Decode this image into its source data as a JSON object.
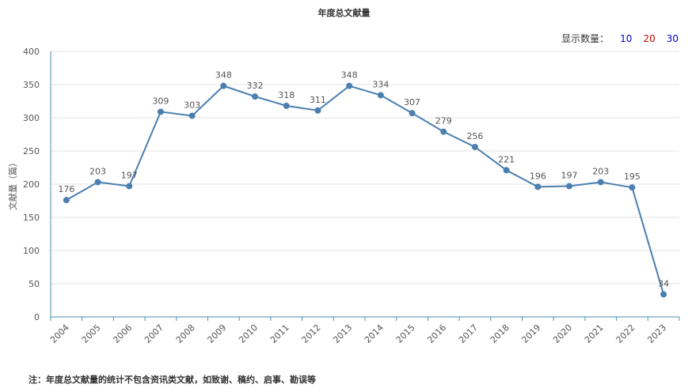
{
  "chart_data": {
    "type": "line",
    "title": "年度总文献量",
    "ylabel": "文献量（篇）",
    "xlabel": "",
    "categories": [
      "2004",
      "2005",
      "2006",
      "2007",
      "2008",
      "2009",
      "2010",
      "2011",
      "2012",
      "2013",
      "2014",
      "2015",
      "2016",
      "2017",
      "2018",
      "2019",
      "2020",
      "2021",
      "2022",
      "2023"
    ],
    "values": [
      176,
      203,
      197,
      309,
      303,
      348,
      332,
      318,
      311,
      348,
      334,
      307,
      279,
      256,
      221,
      196,
      197,
      203,
      195,
      34
    ],
    "ylim": [
      0,
      400
    ],
    "yticks": [
      0,
      50,
      100,
      150,
      200,
      250,
      300,
      350,
      400
    ],
    "grid": true,
    "line_color": "#4a7fb0"
  },
  "count_selector": {
    "label": "显示数量：",
    "options": [
      {
        "text": "10",
        "color": "#0000cc"
      },
      {
        "text": "20",
        "color": "#cc0000"
      },
      {
        "text": "30",
        "color": "#0000cc"
      }
    ]
  },
  "note": "注：年度总文献量的统计不包含资讯类文献，如致谢、稿约、启事、勘误等"
}
